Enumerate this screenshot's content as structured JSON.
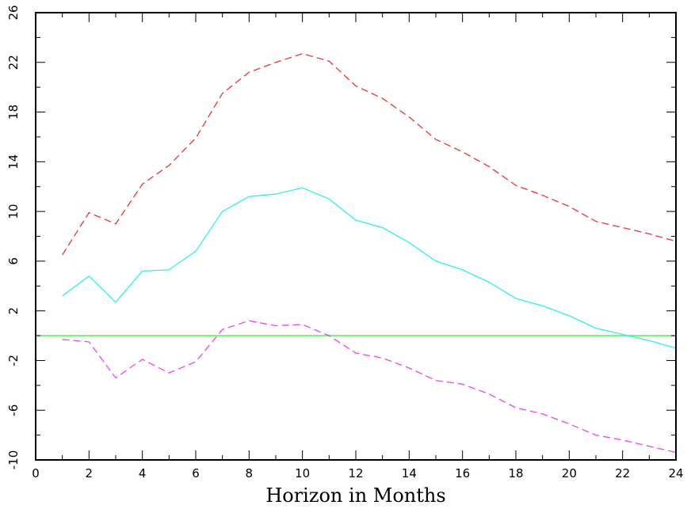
{
  "chart_data": {
    "type": "line",
    "title": "",
    "xlabel": "Horizon in Months",
    "ylabel": "",
    "xlim": [
      0,
      24
    ],
    "ylim": [
      -10,
      26
    ],
    "xticks": [
      0,
      2,
      4,
      6,
      8,
      10,
      12,
      14,
      16,
      18,
      20,
      22,
      24
    ],
    "yticks": [
      -10,
      -6,
      -2,
      2,
      6,
      10,
      14,
      18,
      22,
      26
    ],
    "grid": false,
    "legend": "none",
    "zero_line": {
      "value": 0,
      "color": "#55ee55"
    },
    "x": [
      1,
      2,
      3,
      4,
      5,
      6,
      7,
      8,
      9,
      10,
      11,
      12,
      13,
      14,
      15,
      16,
      17,
      18,
      19,
      20,
      21,
      22,
      23,
      24
    ],
    "series": [
      {
        "role": "upper-band",
        "color": "#ee3333",
        "dash": true,
        "values": [
          6.5,
          9.9,
          9.0,
          12.2,
          13.7,
          15.9,
          19.5,
          21.2,
          22.0,
          22.7,
          22.1,
          20.1,
          19.1,
          17.6,
          15.8,
          14.8,
          13.6,
          12.1,
          11.3,
          10.4,
          9.2,
          8.7,
          8.2,
          7.6
        ]
      },
      {
        "role": "point-estimate",
        "color": "#33eeee",
        "dash": false,
        "values": [
          3.2,
          4.8,
          2.7,
          5.2,
          5.3,
          6.8,
          10.0,
          11.2,
          11.4,
          11.9,
          11.0,
          9.3,
          8.7,
          7.5,
          6.0,
          5.3,
          4.3,
          3.0,
          2.4,
          1.6,
          0.6,
          0.1,
          -0.4,
          -1.0
        ]
      },
      {
        "role": "lower-band",
        "color": "#ee44ee",
        "dash": true,
        "values": [
          -0.3,
          -0.5,
          -3.4,
          -1.9,
          -3.0,
          -2.1,
          0.5,
          1.2,
          0.8,
          0.9,
          0.0,
          -1.4,
          -1.8,
          -2.6,
          -3.6,
          -3.9,
          -4.7,
          -5.8,
          -6.3,
          -7.1,
          -8.0,
          -8.4,
          -8.9,
          -9.4
        ]
      }
    ]
  }
}
